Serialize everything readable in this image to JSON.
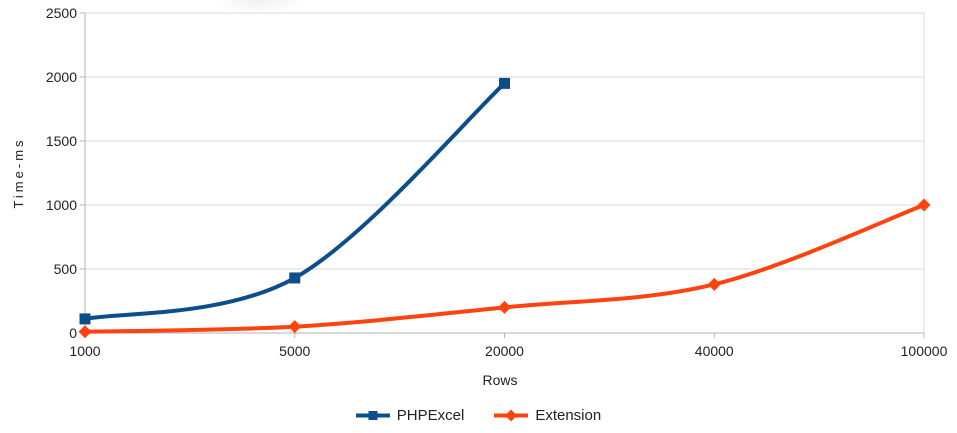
{
  "chart_data": {
    "type": "line",
    "title": "",
    "xlabel": "Rows",
    "ylabel": "Time-ms",
    "categories": [
      "1000",
      "5000",
      "20000",
      "40000",
      "100000"
    ],
    "x_tick_labels": [
      "1000",
      "5000",
      "20000",
      "40000",
      "100000"
    ],
    "y_ticks": [
      0,
      500,
      1000,
      1500,
      2000,
      2500
    ],
    "y_tick_labels": [
      "0",
      "500",
      "1000",
      "1500",
      "2000",
      "2500"
    ],
    "ylim": [
      0,
      2500
    ],
    "series": [
      {
        "name": "PHPExcel",
        "marker": "square",
        "color": "#0D4D8C",
        "values": [
          110,
          430,
          1950
        ]
      },
      {
        "name": "Extension",
        "marker": "diamond",
        "color": "#FF420E",
        "values": [
          10,
          50,
          200,
          380,
          1000
        ]
      }
    ],
    "smooth_lines": true,
    "grid": "horizontal-only",
    "legend_position": "bottom-center",
    "axis_color": "#B3B3B3",
    "gridline_color": "#D9D9D9",
    "text_color": "#222222",
    "background_color": "#FFFFFF"
  }
}
